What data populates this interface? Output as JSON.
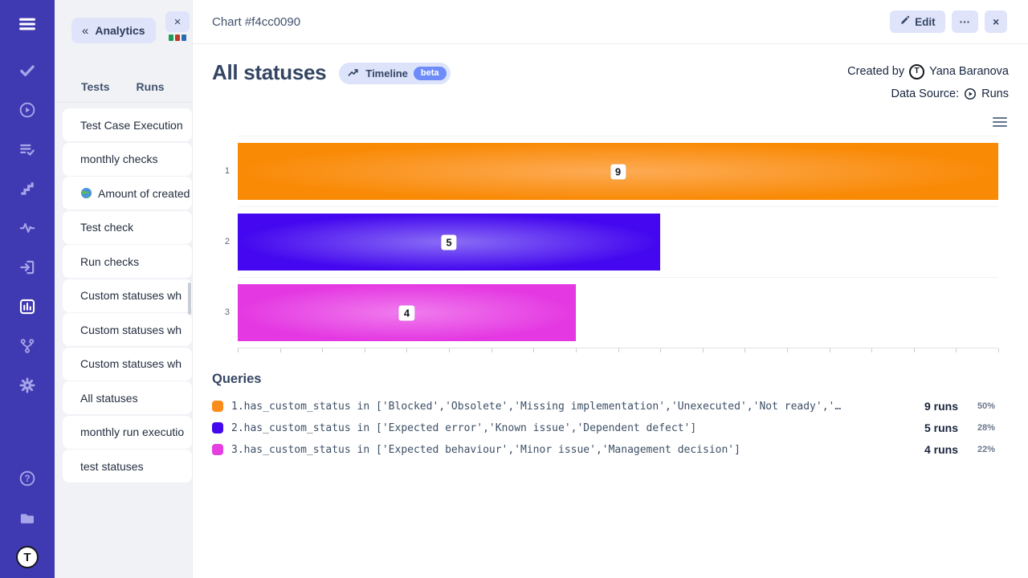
{
  "sidebar": {
    "icons": [
      {
        "name": "menu-icon",
        "glyph": "menu",
        "active": false
      },
      {
        "name": "tests-icon",
        "glyph": "check",
        "active": false
      },
      {
        "name": "runs-icon",
        "glyph": "play-circle",
        "active": false
      },
      {
        "name": "plans-icon",
        "glyph": "list-check",
        "active": false
      },
      {
        "name": "milestones-icon",
        "glyph": "steps",
        "active": false
      },
      {
        "name": "pulse-icon",
        "glyph": "activity",
        "active": false
      },
      {
        "name": "import-icon",
        "glyph": "sign-in",
        "active": false
      },
      {
        "name": "analytics-icon",
        "glyph": "bar-chart",
        "active": true
      },
      {
        "name": "branch-icon",
        "glyph": "branch",
        "active": false
      },
      {
        "name": "settings-icon",
        "glyph": "gear",
        "active": false
      }
    ],
    "bottom_icons": [
      {
        "name": "help-icon",
        "glyph": "help"
      },
      {
        "name": "projects-icon",
        "glyph": "folder"
      }
    ],
    "logo_initial": "T"
  },
  "panel": {
    "back_chevrons": "«",
    "back_button_label": "Analytics",
    "tab_close_glyph": "×",
    "tab_colors": [
      "#1f9d55",
      "#c0392b",
      "#2b6cb0"
    ],
    "tabs": [
      {
        "label": "Tests"
      },
      {
        "label": "Runs"
      }
    ],
    "chart_list": [
      {
        "label": "Test Case Execution"
      },
      {
        "label": "monthly checks"
      },
      {
        "label": "Amount of created",
        "icon": "globe"
      },
      {
        "label": "Test check"
      },
      {
        "label": "Run checks"
      },
      {
        "label": "Custom statuses wh"
      },
      {
        "label": "Custom statuses wh"
      },
      {
        "label": "Custom statuses wh"
      },
      {
        "label": "All statuses"
      },
      {
        "label": "monthly run executio"
      },
      {
        "label": "test statuses"
      }
    ]
  },
  "topbar": {
    "title": "Chart #f4cc0090",
    "edit_label": "Edit",
    "more_label": "···",
    "close_label": "×"
  },
  "chart_header": {
    "title": "All statuses",
    "timeline_label": "Timeline",
    "beta_label": "beta",
    "created_by_label": "Created by",
    "created_by_name": "Yana Baranova",
    "avatar_initial": "T",
    "data_source_label": "Data Source:",
    "data_source_value": "Runs"
  },
  "chart_data": {
    "type": "bar",
    "orientation": "horizontal",
    "title": "All statuses",
    "categories": [
      "1",
      "2",
      "3"
    ],
    "values": [
      9,
      5,
      4
    ],
    "value_labels": [
      "9",
      "5",
      "4"
    ],
    "xlim": [
      0,
      9
    ],
    "tick_step": 0.5,
    "grid": "row-separators-only",
    "legend_position": "none",
    "series_colors": [
      {
        "edge": "#f98a06",
        "center": "#fdab55"
      },
      {
        "edge": "#4407ef",
        "center": "#8a6df5"
      },
      {
        "edge": "#e438e2",
        "center": "#f07ced"
      }
    ]
  },
  "queries": {
    "heading": "Queries",
    "rows": [
      {
        "color": "#fb8c1a",
        "query": "1.has_custom_status in ['Blocked','Obsolete','Missing implementation','Unexecuted','Not ready','…",
        "runs": "9 runs",
        "percent": "50%"
      },
      {
        "color": "#4408ee",
        "query": "2.has_custom_status in ['Expected error','Known issue','Dependent defect']",
        "runs": "5 runs",
        "percent": "28%"
      },
      {
        "color": "#e43fe2",
        "query": "3.has_custom_status in ['Expected behaviour','Minor issue','Management decision']",
        "runs": "4 runs",
        "percent": "22%"
      }
    ]
  }
}
